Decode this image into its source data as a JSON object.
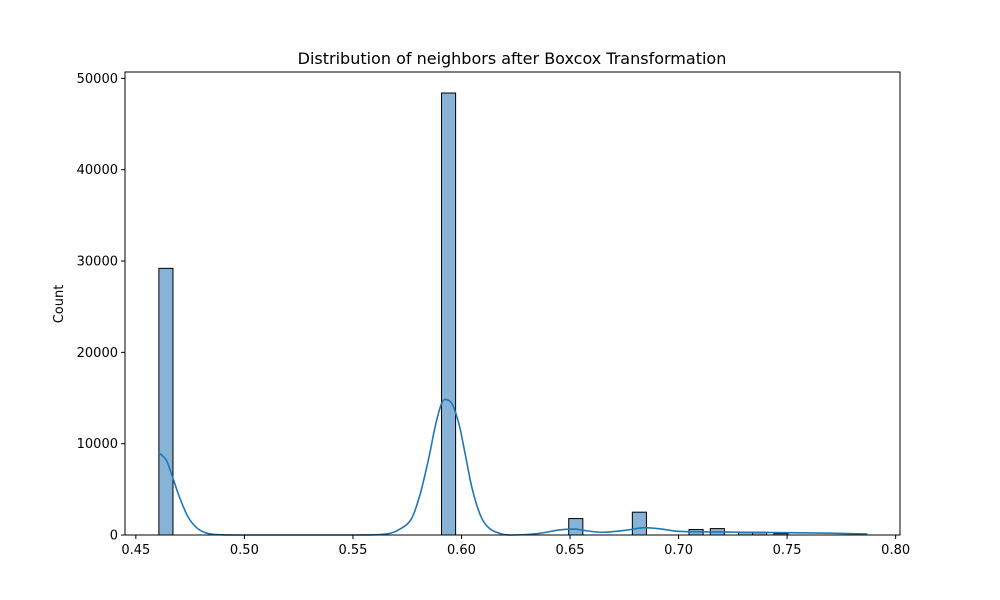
{
  "chart_data": {
    "type": "bar",
    "title": "Distribution of neighbors after Boxcox Transformation",
    "xlabel": "",
    "ylabel": "Count",
    "xlim": [
      0.445,
      0.802
    ],
    "ylim": [
      0,
      50700
    ],
    "x_ticks": [
      0.45,
      0.5,
      0.55,
      0.6,
      0.65,
      0.7,
      0.75,
      0.8
    ],
    "x_tick_labels": [
      "0.45",
      "0.50",
      "0.55",
      "0.60",
      "0.65",
      "0.70",
      "0.75",
      "0.80"
    ],
    "y_ticks": [
      0,
      10000,
      20000,
      30000,
      40000,
      50000
    ],
    "y_tick_labels": [
      "0",
      "10000",
      "20000",
      "30000",
      "40000",
      "50000"
    ],
    "bin_width": 0.0065,
    "histogram": {
      "bin_starts": [
        0.4606,
        0.5908,
        0.6494,
        0.6787,
        0.7048,
        0.7146,
        0.7276,
        0.7341,
        0.7439
      ],
      "counts": [
        29200,
        48400,
        1800,
        2500,
        600,
        700,
        300,
        300,
        150
      ]
    },
    "kde": {
      "x": [
        0.4606,
        0.464,
        0.467,
        0.47,
        0.474,
        0.478,
        0.482,
        0.487,
        0.495,
        0.51,
        0.55,
        0.565,
        0.572,
        0.577,
        0.581,
        0.585,
        0.588,
        0.591,
        0.5935,
        0.596,
        0.599,
        0.602,
        0.605,
        0.609,
        0.613,
        0.618,
        0.623,
        0.635,
        0.645,
        0.652,
        0.658,
        0.665,
        0.675,
        0.684,
        0.692,
        0.7,
        0.71,
        0.73,
        0.75,
        0.77,
        0.787
      ],
      "y": [
        9000,
        8200,
        6300,
        4200,
        2000,
        800,
        250,
        50,
        0,
        0,
        0,
        100,
        700,
        1800,
        4500,
        8500,
        12000,
        14500,
        14800,
        14200,
        12000,
        8500,
        5000,
        2000,
        700,
        150,
        0,
        150,
        550,
        650,
        450,
        300,
        500,
        800,
        650,
        400,
        350,
        300,
        250,
        200,
        100
      ]
    },
    "grid": false,
    "legend": "none",
    "colors": {
      "bar_fill": "#86b3d6",
      "bar_edge": "#000000",
      "kde_line": "#1f77b4",
      "axes": "#000000"
    }
  }
}
